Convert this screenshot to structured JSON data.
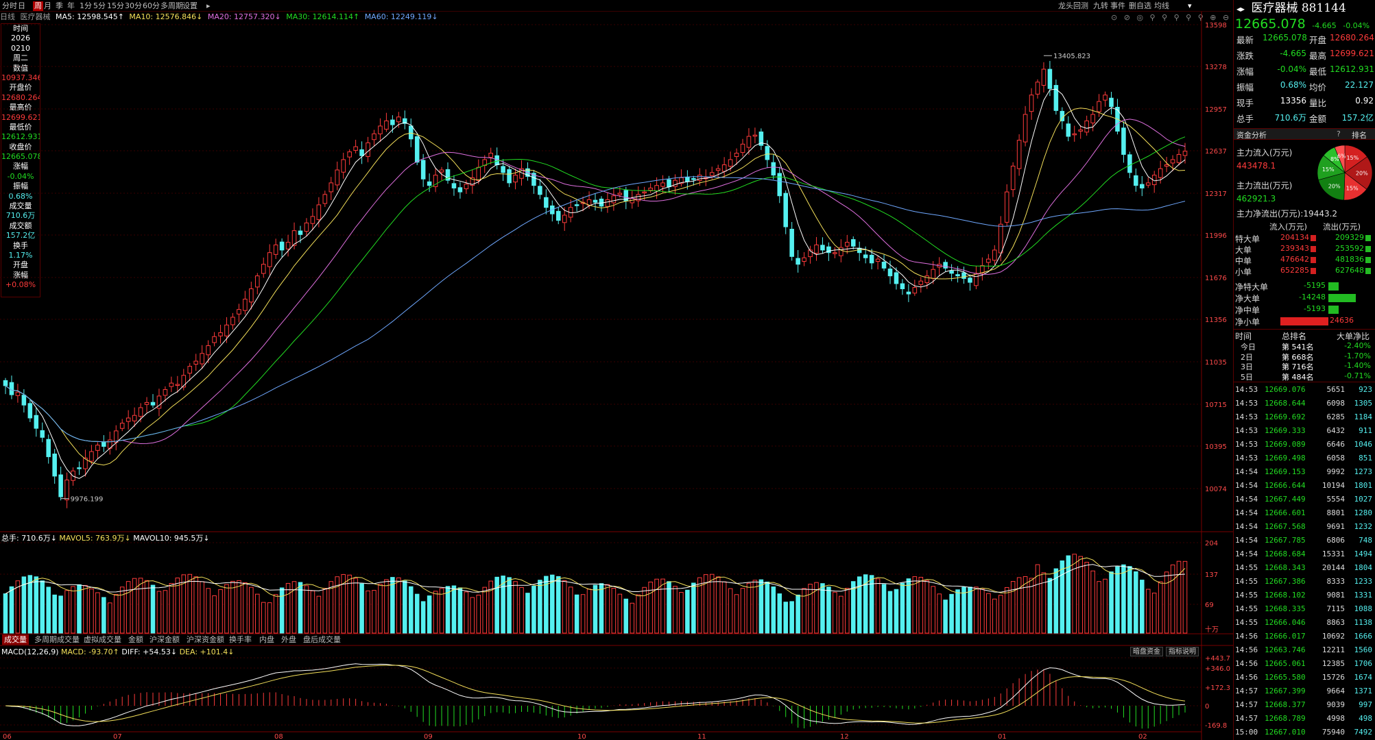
{
  "periods": [
    "分时",
    "日",
    "周",
    "月",
    "季",
    "年",
    "1分",
    "5分",
    "15分",
    "30分",
    "60分",
    "多周期",
    "设置",
    "▸"
  ],
  "tools": [
    "龙头回测",
    "九转",
    "事件",
    "删自选",
    "均线"
  ],
  "info": {
    "period": "日线",
    "symbol": "医疗器械",
    "ma5": "MA5: 12598.545↑",
    "ma10": "MA10: 12576.846↓",
    "ma20": "MA20: 12757.320↓",
    "ma30": "MA30: 12614.114↑",
    "ma60": "MA60: 12249.119↓"
  },
  "crosshair": {
    "time_label": "时间",
    "year": "2026",
    "date": "0210",
    "weekday": "周二",
    "value_label": "数值",
    "value": "10937.346",
    "open_label": "开盘价",
    "open": "12680.264",
    "high_label": "最高价",
    "high": "12699.621",
    "low_label": "最低价",
    "low": "12612.931",
    "close_label": "收盘价",
    "close": "12665.078",
    "change_label": "涨幅",
    "change": "-0.04%",
    "amp_label": "振幅",
    "amp": "0.68%",
    "vol_label": "成交量",
    "vol": "710.6万",
    "amt_label": "成交额",
    "amt": "157.2亿",
    "turn_label": "换手",
    "turn": "1.17%",
    "openchg_label1": "开盘",
    "openchg_label2": "涨幅",
    "openchg": "+0.08%"
  },
  "price_axis": [
    "13598",
    "13278",
    "12957",
    "12637",
    "12317",
    "11996",
    "11676",
    "11356",
    "11035",
    "10715",
    "10395",
    "10074"
  ],
  "volume_axis": [
    "204",
    "137",
    "69",
    "十万"
  ],
  "macd_axis": [
    "+443.7",
    "+346.0",
    "+172.3",
    "0",
    "-169.8"
  ],
  "months": [
    "06",
    "07",
    "08",
    "09",
    "10",
    "11",
    "12",
    "01",
    "02"
  ],
  "tabs": [
    "成交量",
    "多周期成交量",
    "虚拟成交量",
    "金额",
    "沪深金额",
    "沪深资金额",
    "换手率",
    "内盘",
    "外盘",
    "盘后成交量"
  ],
  "volume_panel": {
    "total": "总手: 710.6万↓",
    "mavol5": "MAVOL5: 763.9万↓",
    "mavol10": "MAVOL10: 945.5万↓"
  },
  "macd_panel": {
    "name": "MACD(12,26,9)",
    "macd": "MACD: -93.70↑",
    "diff": "DIFF: +54.53↓",
    "dea": "DEA: +101.4↓",
    "btn1": "暗盘资金",
    "btn2": "指标说明"
  },
  "annotations": {
    "high": "13405.823",
    "low": "9976.199"
  },
  "colors": {
    "up": "#ff3b3b",
    "down": "#55f0f0",
    "ma5": "#ffffff",
    "ma10": "#f4e05a",
    "ma20": "#e070e0",
    "ma30": "#22dd22",
    "ma60": "#6fa8ff"
  },
  "quote": {
    "name": "医疗器械",
    "code": "881144",
    "price": "12665.078",
    "chg": "-4.665",
    "pct": "-0.04%"
  },
  "stats": [
    {
      "l1": "最新",
      "v1": "12665.078",
      "c1": "grn",
      "l2": "开盘",
      "v2": "12680.264",
      "c2": "red"
    },
    {
      "l1": "涨跌",
      "v1": "-4.665",
      "c1": "grn",
      "l2": "最高",
      "v2": "12699.621",
      "c2": "red"
    },
    {
      "l1": "涨幅",
      "v1": "-0.04%",
      "c1": "grn",
      "l2": "最低",
      "v2": "12612.931",
      "c2": "grn"
    },
    {
      "l1": "振幅",
      "v1": "0.68%",
      "c1": "cyan",
      "l2": "均价",
      "v2": "22.127",
      "c2": "cyan"
    },
    {
      "l1": "现手",
      "v1": "13356",
      "c1": "wht",
      "l2": "量比",
      "v2": "0.92",
      "c2": "wht"
    },
    {
      "l1": "总手",
      "v1": "710.6万",
      "c1": "cyan",
      "l2": "金额",
      "v2": "157.2亿",
      "c2": "cyan"
    }
  ],
  "fund": {
    "title": "资金分析",
    "rank_btn": "排名",
    "inflow_label": "主力流入(万元)",
    "inflow": "443478.1",
    "outflow_label": "主力流出(万元)",
    "outflow": "462921.3",
    "net_label": "主力净流出(万元):",
    "net": "19443.2",
    "pie": [
      {
        "label": "15%",
        "value": 15,
        "color": "#d42020"
      },
      {
        "label": "20%",
        "value": 20,
        "color": "#b01818"
      },
      {
        "label": "15%",
        "value": 15,
        "color": "#e83030"
      },
      {
        "label": "20%",
        "value": 20,
        "color": "#128012"
      },
      {
        "label": "15%",
        "value": 15,
        "color": "#1fa01f"
      },
      {
        "label": "8%",
        "value": 8,
        "color": "#2cc02c"
      },
      {
        "label": "6%",
        "value": 6,
        "color": "#ff5050"
      }
    ]
  },
  "flow": {
    "head_in": "流入(万元)",
    "head_out": "流出(万元)",
    "rows": [
      {
        "label": "特大单",
        "in": "204134",
        "out": "209329"
      },
      {
        "label": "大单",
        "in": "239343",
        "out": "253592"
      },
      {
        "label": "中单",
        "in": "476642",
        "out": "481836"
      },
      {
        "label": "小单",
        "in": "652285",
        "out": "627648"
      }
    ]
  },
  "net": [
    {
      "label": "净特大单",
      "value": -5195
    },
    {
      "label": "净大单",
      "value": -14248
    },
    {
      "label": "净中单",
      "value": -5193
    },
    {
      "label": "净小单",
      "value": 24636
    }
  ],
  "rank": {
    "h1": "时间",
    "h2": "总排名",
    "h3": "大单净比",
    "rows": [
      {
        "t": "今日",
        "r": "第 541名",
        "p": "-2.40%"
      },
      {
        "t": "2日",
        "r": "第 668名",
        "p": "-1.70%"
      },
      {
        "t": "3日",
        "r": "第 716名",
        "p": "-1.40%"
      },
      {
        "t": "5日",
        "r": "第 484名",
        "p": "-0.71%"
      }
    ]
  },
  "ticks": [
    [
      "14:53",
      "12669.076",
      "5651",
      "923"
    ],
    [
      "14:53",
      "12668.644",
      "6098",
      "1305"
    ],
    [
      "14:53",
      "12669.692",
      "6285",
      "1184"
    ],
    [
      "14:53",
      "12669.333",
      "6432",
      "911"
    ],
    [
      "14:53",
      "12669.089",
      "6646",
      "1046"
    ],
    [
      "14:53",
      "12669.498",
      "6058",
      "851"
    ],
    [
      "14:54",
      "12669.153",
      "9992",
      "1273"
    ],
    [
      "14:54",
      "12666.644",
      "10194",
      "1801"
    ],
    [
      "14:54",
      "12667.449",
      "5554",
      "1027"
    ],
    [
      "14:54",
      "12666.601",
      "8801",
      "1280"
    ],
    [
      "14:54",
      "12667.568",
      "9691",
      "1232"
    ],
    [
      "14:54",
      "12667.785",
      "6806",
      "748"
    ],
    [
      "14:54",
      "12668.684",
      "15331",
      "1494"
    ],
    [
      "14:55",
      "12668.343",
      "20144",
      "1804"
    ],
    [
      "14:55",
      "12667.386",
      "8333",
      "1233"
    ],
    [
      "14:55",
      "12668.102",
      "9081",
      "1331"
    ],
    [
      "14:55",
      "12668.335",
      "7115",
      "1088"
    ],
    [
      "14:55",
      "12666.046",
      "8863",
      "1138"
    ],
    [
      "14:56",
      "12666.017",
      "10692",
      "1666"
    ],
    [
      "14:56",
      "12663.746",
      "12211",
      "1560"
    ],
    [
      "14:56",
      "12665.061",
      "12385",
      "1706"
    ],
    [
      "14:56",
      "12665.580",
      "15726",
      "1674"
    ],
    [
      "14:57",
      "12667.399",
      "9664",
      "1371"
    ],
    [
      "14:57",
      "12668.377",
      "9039",
      "997"
    ],
    [
      "14:57",
      "12668.789",
      "4998",
      "498"
    ],
    [
      "15:00",
      "12667.010",
      "75940",
      "7492"
    ]
  ],
  "chart_data": {
    "type": "candlestick",
    "title": "医疗器械 881144 日线",
    "ylim": [
      9900,
      13650
    ],
    "x_ticks": [
      "06",
      "07",
      "08",
      "09",
      "10",
      "11",
      "12",
      "01",
      "02"
    ],
    "closes": [
      10850,
      10780,
      10800,
      10700,
      10600,
      10520,
      10450,
      10300,
      10150,
      9990,
      10120,
      10190,
      10210,
      10290,
      10340,
      10390,
      10380,
      10430,
      10500,
      10560,
      10600,
      10620,
      10680,
      10720,
      10700,
      10770,
      10820,
      10870,
      10860,
      10930,
      11000,
      11040,
      11100,
      11160,
      11230,
      11260,
      11320,
      11380,
      11440,
      11520,
      11600,
      11700,
      11790,
      11880,
      11940,
      11900,
      11960,
      12050,
      12020,
      12110,
      12160,
      12250,
      12330,
      12420,
      12520,
      12600,
      12660,
      12700,
      12630,
      12730,
      12800,
      12860,
      12900,
      12870,
      12930,
      12880,
      12760,
      12580,
      12450,
      12400,
      12480,
      12520,
      12440,
      12380,
      12350,
      12410,
      12460,
      12540,
      12600,
      12650,
      12560,
      12500,
      12420,
      12480,
      12530,
      12470,
      12400,
      12330,
      12230,
      12180,
      12130,
      12170,
      12230,
      12250,
      12270,
      12290,
      12270,
      12240,
      12290,
      12320,
      12340,
      12280,
      12300,
      12330,
      12350,
      12380,
      12400,
      12420,
      12390,
      12440,
      12460,
      12430,
      12450,
      12480,
      12460,
      12500,
      12530,
      12560,
      12600,
      12650,
      12720,
      12780,
      12790,
      12710,
      12600,
      12480,
      12320,
      12080,
      11850,
      11790,
      11840,
      11900,
      11940,
      11900,
      11880,
      11880,
      11920,
      11960,
      11930,
      11880,
      11840,
      11800,
      11830,
      11760,
      11700,
      11640,
      11600,
      11560,
      11610,
      11660,
      11700,
      11750,
      11790,
      11760,
      11720,
      11700,
      11680,
      11650,
      11720,
      11780,
      11830,
      11900,
      12100,
      12350,
      12550,
      12750,
      12950,
      13100,
      13200,
      13300,
      13150,
      12980,
      12900,
      12780,
      12800,
      12830,
      12900,
      12950,
      13050,
      13100,
      13010,
      12820,
      12640,
      12500,
      12400,
      12380,
      12420,
      12480,
      12530,
      12560,
      12600,
      12640,
      12665.078
    ]
  }
}
